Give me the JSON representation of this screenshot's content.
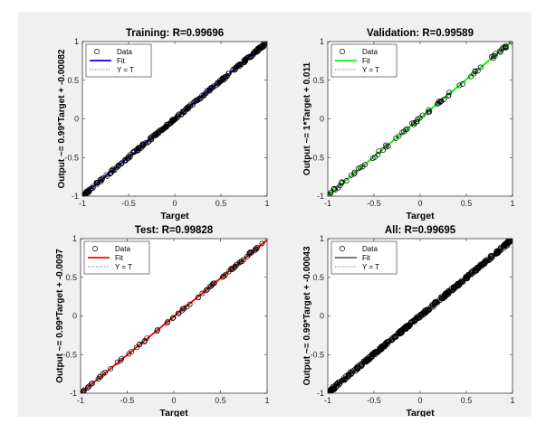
{
  "chart_data": [
    {
      "type": "scatter",
      "title": "Training: R=0.99696",
      "xlabel": "Target",
      "ylabel": "Output ~= 0.99*Target + -0.00082",
      "xlim": [
        -1,
        1
      ],
      "ylim": [
        -1,
        1
      ],
      "xticks": [
        "-1",
        "-0.5",
        "0",
        "0.5",
        "1"
      ],
      "yticks": [
        "-1",
        "-0.5",
        "0",
        "0.5",
        "1"
      ],
      "legend": [
        "Data",
        "Fit",
        "Y = T"
      ],
      "legend_position": "top-left",
      "fit": {
        "slope": 0.99,
        "intercept": -0.00082,
        "color": "#0000ff"
      },
      "points": {
        "count": 260,
        "seed": 11,
        "jitter": 0.018,
        "clusters": [
          [
            -0.95,
            0.04
          ],
          [
            0.93,
            0.07
          ]
        ]
      }
    },
    {
      "type": "scatter",
      "title": "Validation: R=0.99589",
      "xlabel": "Target",
      "ylabel": "Output ~= 1*Target + 0.011",
      "xlim": [
        -1,
        1
      ],
      "ylim": [
        -1,
        1
      ],
      "xticks": [
        "-1",
        "-0.5",
        "0",
        "0.5",
        "1"
      ],
      "yticks": [
        "-1",
        "-0.5",
        "0",
        "0.5",
        "1"
      ],
      "legend": [
        "Data",
        "Fit",
        "Y = T"
      ],
      "legend_position": "top-left",
      "fit": {
        "slope": 1,
        "intercept": 0.011,
        "color": "#00ff00"
      },
      "points": {
        "count": 70,
        "seed": 23,
        "jitter": 0.02,
        "clusters": [
          [
            -0.98,
            0.03
          ],
          [
            0.95,
            0.04
          ]
        ]
      }
    },
    {
      "type": "scatter",
      "title": "Test: R=0.99828",
      "xlabel": "Target",
      "ylabel": "Output ~= 0.99*Target + -0.0097",
      "xlim": [
        -1,
        1
      ],
      "ylim": [
        -1,
        1
      ],
      "xticks": [
        "-1",
        "-0.5",
        "0",
        "0.5",
        "1"
      ],
      "yticks": [
        "-1",
        "-0.5",
        "0",
        "0.5",
        "1"
      ],
      "legend": [
        "Data",
        "Fit",
        "Y = T"
      ],
      "legend_position": "top-left",
      "fit": {
        "slope": 0.99,
        "intercept": -0.0097,
        "color": "#ff0000"
      },
      "points": {
        "count": 70,
        "seed": 37,
        "jitter": 0.012,
        "clusters": [
          [
            -0.95,
            0.03
          ],
          [
            0.82,
            0.03
          ]
        ]
      }
    },
    {
      "type": "scatter",
      "title": "All: R=0.99695",
      "xlabel": "Target",
      "ylabel": "Output ~= 0.99*Target + -0.00043",
      "xlim": [
        -1,
        1
      ],
      "ylim": [
        -1,
        1
      ],
      "xticks": [
        "-1",
        "-0.5",
        "0",
        "0.5",
        "1"
      ],
      "yticks": [
        "-1",
        "-0.5",
        "0",
        "0.5",
        "1"
      ],
      "legend": [
        "Data",
        "Fit",
        "Y = T"
      ],
      "legend_position": "top-left",
      "fit": {
        "slope": 0.99,
        "intercept": -0.00043,
        "color": "#666666"
      },
      "points": {
        "count": 400,
        "seed": 53,
        "jitter": 0.022,
        "clusters": [
          [
            -0.96,
            0.04
          ],
          [
            0.95,
            0.05
          ]
        ]
      }
    }
  ]
}
